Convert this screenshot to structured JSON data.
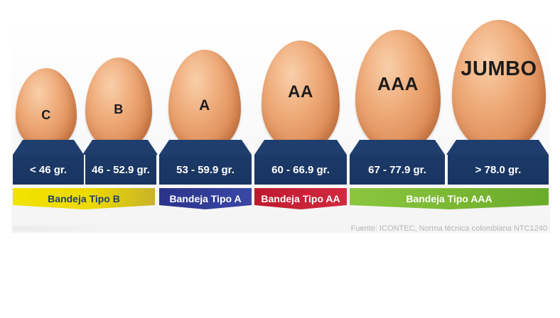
{
  "eggs": [
    {
      "label": "C"
    },
    {
      "label": "B"
    },
    {
      "label": "A"
    },
    {
      "label": "AA"
    },
    {
      "label": "AAA"
    },
    {
      "label": "JUMBO"
    }
  ],
  "weights": [
    "< 46 gr.",
    "46 - 52.9 gr.",
    "53 - 59.9 gr.",
    "60 - 66.9 gr.",
    "67 - 77.9 gr.",
    "> 78.0 gr."
  ],
  "trays": [
    {
      "label": "Bandeja Tipo B",
      "color": "#e9d800",
      "text_color": "#1f3e6e"
    },
    {
      "label": "Bandeja Tipo A",
      "color": "#2f3a93",
      "text_color": "#ffffff"
    },
    {
      "label": "Bandeja Tipo AA",
      "color": "#c51d35",
      "text_color": "#ffffff"
    },
    {
      "label": "Bandeja Tipo AAA",
      "color": "#7cbf2e",
      "text_color": "#ffffff"
    }
  ],
  "colors": {
    "band_blue": "#1f3e6e",
    "egg_shell": "#eeaa78"
  },
  "source": "Fuente: ICONTEC, Norma técnica colombiana NTC1240"
}
